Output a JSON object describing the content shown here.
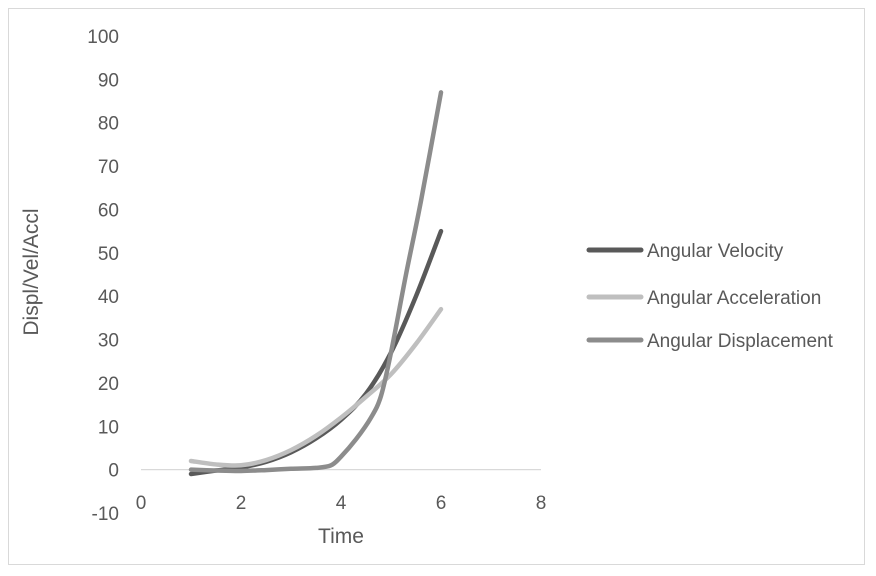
{
  "chart_data": {
    "type": "line",
    "title": "",
    "xlabel": "Time",
    "ylabel": "Displ/Vel/Accl",
    "xlim": [
      0,
      8
    ],
    "ylim": [
      -10,
      100
    ],
    "x_ticks": [
      0,
      2,
      4,
      6,
      8
    ],
    "y_ticks": [
      -10,
      0,
      10,
      20,
      30,
      40,
      50,
      60,
      70,
      80,
      90,
      100
    ],
    "grid": false,
    "legend_position": "right",
    "series": [
      {
        "name": "Angular Velocity",
        "color": "#595959",
        "x": [
          1,
          1.5,
          2,
          2.5,
          3,
          3.5,
          4,
          4.5,
          5,
          5.5,
          6
        ],
        "y": [
          -1,
          -0.2,
          0.5,
          1.8,
          4,
          7.2,
          11.5,
          17.5,
          27,
          40,
          55
        ]
      },
      {
        "name": "Angular Acceleration",
        "color": "#bfbfbf",
        "x": [
          1,
          1.5,
          2,
          2.5,
          3,
          3.5,
          4,
          4.5,
          5,
          5.5,
          6
        ],
        "y": [
          2,
          1.2,
          1,
          2.2,
          4.5,
          7.8,
          12,
          16.8,
          22,
          29,
          37
        ]
      },
      {
        "name": "Angular Displacement",
        "color": "#8c8c8c",
        "x": [
          1,
          1.5,
          2,
          2.5,
          3,
          3.5,
          3.8,
          4,
          4.3,
          4.6,
          4.8,
          5,
          5.3,
          5.6,
          6
        ],
        "y": [
          0,
          -0.2,
          -0.3,
          -0.1,
          0.2,
          0.4,
          1,
          3,
          7,
          12,
          17,
          27,
          45,
          62,
          87
        ]
      }
    ]
  }
}
